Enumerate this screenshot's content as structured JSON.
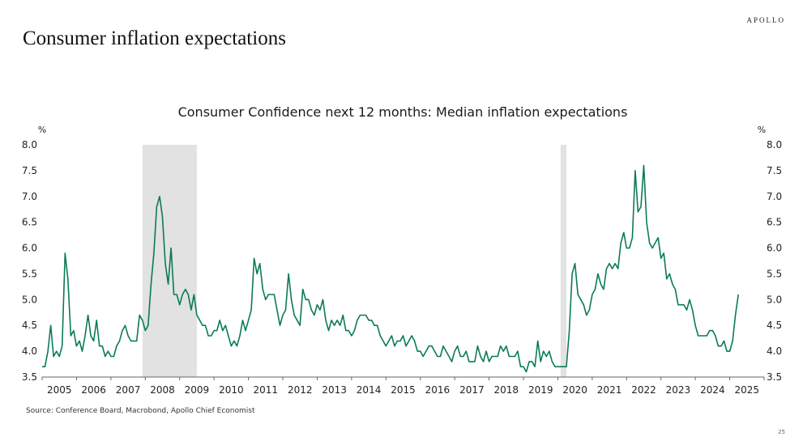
{
  "header": {
    "title": "Consumer inflation expectations",
    "brand": "APOLLO"
  },
  "footer": {
    "source": "Source: Conference Board, Macrobond, Apollo Chief Economist",
    "page_number": "25"
  },
  "colors": {
    "line": "#0b7a5a",
    "recession_shading": "#e1e2e1",
    "axis": "#666666"
  },
  "chart_data": {
    "type": "line",
    "title": "Consumer Confidence next 12 months: Median inflation expectations",
    "xlabel": "",
    "ylabel_left": "%",
    "ylabel_right": "%",
    "ylim": [
      3.5,
      8.0
    ],
    "yticks": [
      "3.5",
      "4.0",
      "4.5",
      "5.0",
      "5.5",
      "6.0",
      "6.5",
      "7.0",
      "7.5",
      "8.0"
    ],
    "xticks": [
      "2005",
      "2006",
      "2007",
      "2008",
      "2009",
      "2010",
      "2011",
      "2012",
      "2013",
      "2014",
      "2015",
      "2016",
      "2017",
      "2018",
      "2019",
      "2020",
      "2021",
      "2022",
      "2023",
      "2024",
      "2025"
    ],
    "xlim": [
      2005.0,
      2026.0
    ],
    "grid": false,
    "legend": "none",
    "recessions": [
      {
        "start": 2007.92,
        "end": 2009.5
      },
      {
        "start": 2020.08,
        "end": 2020.25
      }
    ],
    "series": [
      {
        "name": "Median inflation expectations, next 12 months",
        "start": 2005.0,
        "frequency": "monthly",
        "values": [
          3.7,
          3.7,
          4.0,
          4.5,
          3.9,
          4.0,
          3.9,
          4.1,
          5.9,
          5.4,
          4.3,
          4.4,
          4.1,
          4.2,
          4.0,
          4.3,
          4.7,
          4.3,
          4.2,
          4.6,
          4.1,
          4.1,
          3.9,
          4.0,
          3.9,
          3.9,
          4.1,
          4.2,
          4.4,
          4.5,
          4.3,
          4.2,
          4.2,
          4.2,
          4.7,
          4.6,
          4.4,
          4.5,
          5.3,
          5.9,
          6.8,
          7.0,
          6.6,
          5.7,
          5.3,
          6.0,
          5.1,
          5.1,
          4.9,
          5.1,
          5.2,
          5.1,
          4.8,
          5.1,
          4.7,
          4.6,
          4.5,
          4.5,
          4.3,
          4.3,
          4.4,
          4.4,
          4.6,
          4.4,
          4.5,
          4.3,
          4.1,
          4.2,
          4.1,
          4.3,
          4.6,
          4.4,
          4.6,
          4.8,
          5.8,
          5.5,
          5.7,
          5.2,
          5.0,
          5.1,
          5.1,
          5.1,
          4.8,
          4.5,
          4.7,
          4.8,
          5.5,
          5.0,
          4.7,
          4.6,
          4.5,
          5.2,
          5.0,
          5.0,
          4.8,
          4.7,
          4.9,
          4.8,
          5.0,
          4.6,
          4.4,
          4.6,
          4.5,
          4.6,
          4.5,
          4.7,
          4.4,
          4.4,
          4.3,
          4.4,
          4.6,
          4.7,
          4.7,
          4.7,
          4.6,
          4.6,
          4.5,
          4.5,
          4.3,
          4.2,
          4.1,
          4.2,
          4.3,
          4.1,
          4.2,
          4.2,
          4.3,
          4.1,
          4.2,
          4.3,
          4.2,
          4.0,
          4.0,
          3.9,
          4.0,
          4.1,
          4.1,
          4.0,
          3.9,
          3.9,
          4.1,
          4.0,
          3.9,
          3.8,
          4.0,
          4.1,
          3.9,
          3.9,
          4.0,
          3.8,
          3.8,
          3.8,
          4.1,
          3.9,
          3.8,
          4.0,
          3.8,
          3.9,
          3.9,
          3.9,
          4.1,
          4.0,
          4.1,
          3.9,
          3.9,
          3.9,
          4.0,
          3.7,
          3.7,
          3.6,
          3.8,
          3.8,
          3.7,
          4.2,
          3.8,
          4.0,
          3.9,
          4.0,
          3.8,
          3.7,
          3.7,
          3.7,
          3.7,
          3.7,
          4.4,
          5.5,
          5.7,
          5.1,
          5.0,
          4.9,
          4.7,
          4.8,
          5.1,
          5.2,
          5.5,
          5.3,
          5.2,
          5.6,
          5.7,
          5.6,
          5.7,
          5.6,
          6.1,
          6.3,
          6.0,
          6.0,
          6.2,
          7.5,
          6.7,
          6.8,
          7.6,
          6.5,
          6.1,
          6.0,
          6.1,
          6.2,
          5.8,
          5.9,
          5.4,
          5.5,
          5.3,
          5.2,
          4.9,
          4.9,
          4.9,
          4.8,
          5.0,
          4.8,
          4.5,
          4.3,
          4.3,
          4.3,
          4.3,
          4.4,
          4.4,
          4.3,
          4.1,
          4.1,
          4.2,
          4.0,
          4.0,
          4.2,
          4.7,
          5.1
        ]
      }
    ]
  }
}
